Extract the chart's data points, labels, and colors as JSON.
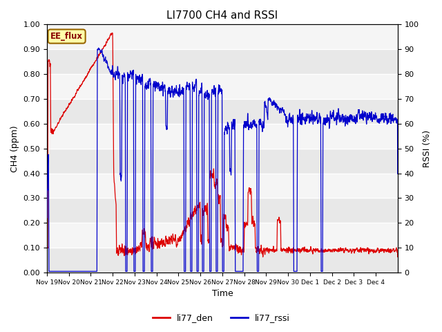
{
  "title": "LI7700 CH4 and RSSI",
  "xlabel": "Time",
  "ylabel_left": "CH4 (ppm)",
  "ylabel_right": "RSSI (%)",
  "ylim_left": [
    0.0,
    1.0
  ],
  "ylim_right": [
    0,
    100
  ],
  "yticks_left": [
    0.0,
    0.1,
    0.2,
    0.3,
    0.4,
    0.5,
    0.6,
    0.7,
    0.8,
    0.9,
    1.0
  ],
  "yticks_right": [
    0,
    10,
    20,
    30,
    40,
    50,
    60,
    70,
    80,
    90,
    100
  ],
  "color_red": "#dd0000",
  "color_blue": "#0000cc",
  "legend_labels": [
    "li77_den",
    "li77_rssi"
  ],
  "annotation_text": "EE_flux",
  "annotation_bg": "#ffffaa",
  "annotation_border": "#996600",
  "plot_bg_light": "#f0f0f0",
  "plot_bg_dark": "#e0e0e0",
  "title_fontsize": 11,
  "label_fontsize": 9,
  "tick_fontsize": 8,
  "total_days": 16,
  "tick_labels": [
    "Nov 19",
    "Nov 20",
    "Nov 21",
    "Nov 22",
    "Nov 23",
    "Nov 24",
    "Nov 25",
    "Nov 26",
    "Nov 27",
    "Nov 28",
    "Nov 29",
    "Nov 30",
    "Dec 1",
    "Dec 2",
    "Dec 3",
    "Dec 4"
  ]
}
